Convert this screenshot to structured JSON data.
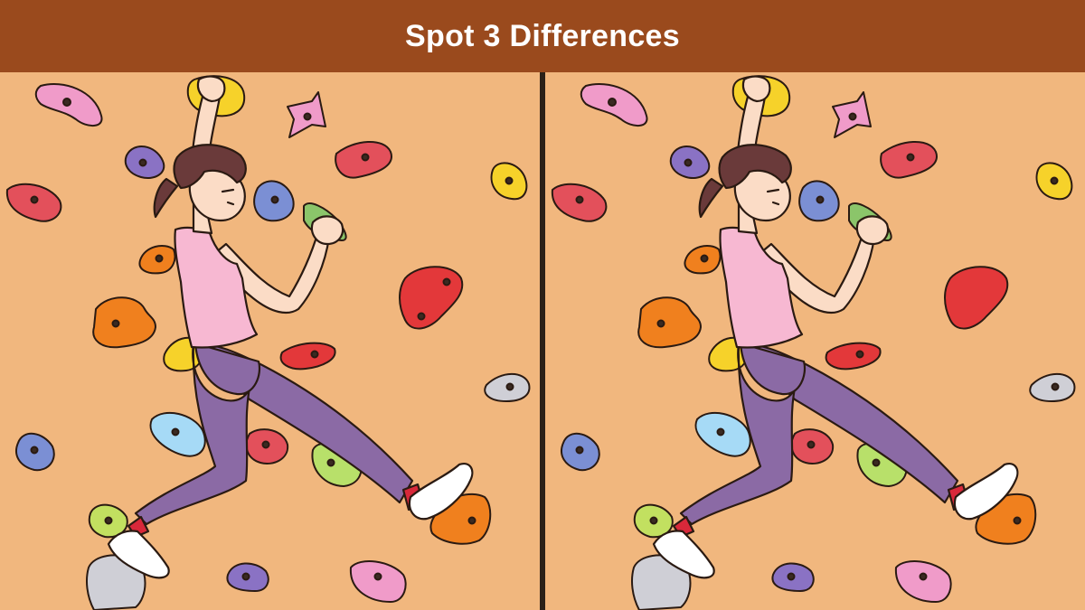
{
  "header": {
    "title": "Spot 3 Differences"
  },
  "colors": {
    "banner": "#9a4a1d",
    "wall": "#f1b77e",
    "divider": "#2b2118",
    "outline": "#2a1a12",
    "skin": "#fbdcc6",
    "hair": "#6a3a3a",
    "tank_top": "#f7b8d2",
    "leggings": "#8b6aa5",
    "shoes": "#ffffff",
    "socks": "#d8283a"
  },
  "panels": [
    {
      "id": "left",
      "label": "original-image"
    },
    {
      "id": "right",
      "label": "altered-image"
    }
  ]
}
